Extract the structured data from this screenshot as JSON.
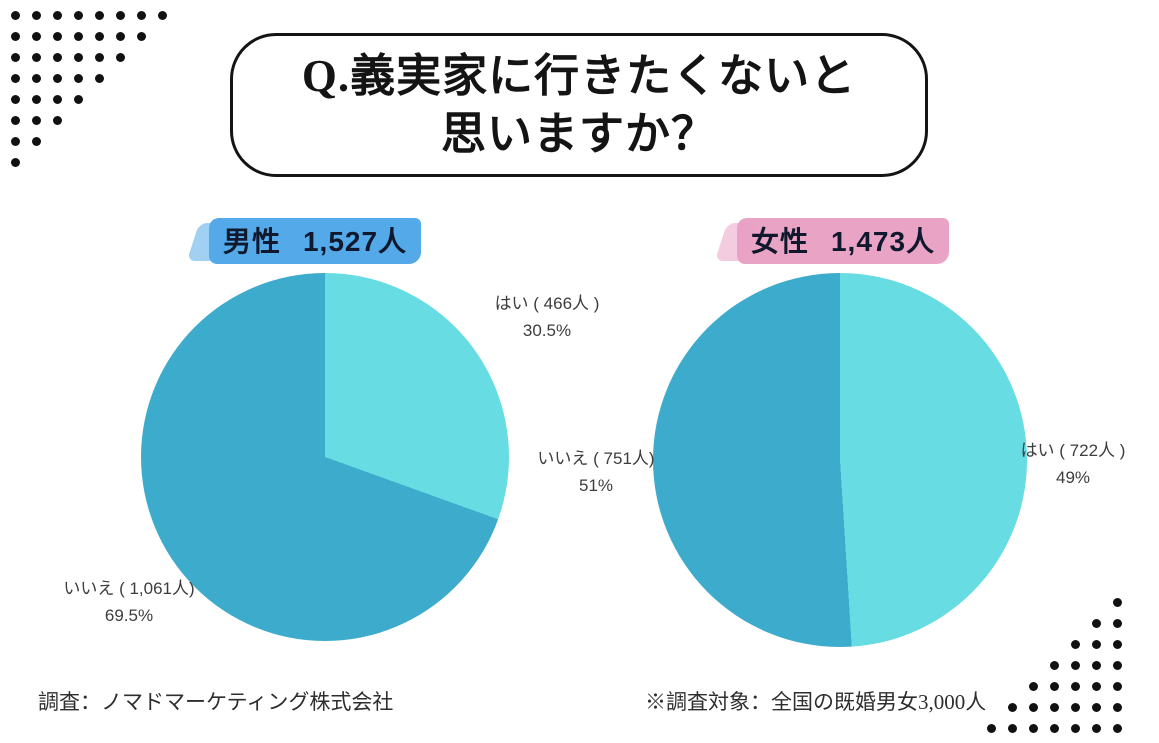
{
  "title": {
    "line1": "Q.義実家に行きたくないと",
    "line2": "思いますか？"
  },
  "chart_data": [
    {
      "type": "pie",
      "name": "male",
      "header": {
        "label": "男性",
        "count": "1,527人"
      },
      "total": 1527,
      "highlight_color": "#54a9e9",
      "start_angle": 0,
      "direction": "clockwise",
      "slices": [
        {
          "label": "はい",
          "value": 466,
          "percent": 30.5,
          "display": "はい ( 466人 )",
          "percent_display": "30.5%",
          "color": "#67dce2"
        },
        {
          "label": "いいえ",
          "value": 1061,
          "percent": 69.5,
          "display": "いいえ ( 1,061人)",
          "percent_display": "69.5%",
          "color": "#3dabcb"
        }
      ]
    },
    {
      "type": "pie",
      "name": "female",
      "header": {
        "label": "女性",
        "count": "1,473人"
      },
      "total": 1473,
      "highlight_color": "#e9a3c5",
      "start_angle": 0,
      "direction": "clockwise",
      "slices": [
        {
          "label": "はい",
          "value": 722,
          "percent": 49,
          "display": "はい ( 722人 )",
          "percent_display": "49%",
          "color": "#67dce2"
        },
        {
          "label": "いいえ",
          "value": 751,
          "percent": 51,
          "display": "いいえ ( 751人)",
          "percent_display": "51%",
          "color": "#3dabcb"
        }
      ]
    }
  ],
  "footer": {
    "source": "調査：ノマドマーケティング株式会社",
    "note": "※調査対象：全国の既婚男女3,000人"
  },
  "decorations": [
    "dot-triangle-top-left",
    "dot-triangle-bottom-right"
  ]
}
